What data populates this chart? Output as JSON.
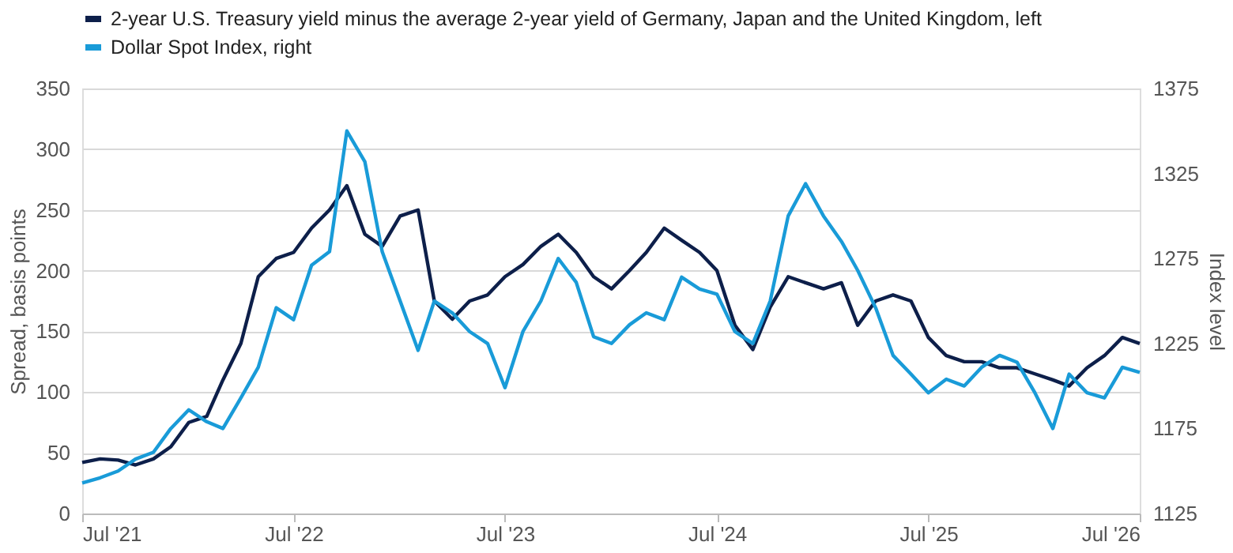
{
  "chart_data": {
    "type": "line",
    "ylabel": "Spread, basis points",
    "y2label": "Index level",
    "x": [
      "2021-07-01",
      "2021-08-01",
      "2021-09-01",
      "2021-10-01",
      "2021-11-01",
      "2021-12-01",
      "2022-01-01",
      "2022-02-01",
      "2022-03-01",
      "2022-04-01",
      "2022-05-01",
      "2022-06-01",
      "2022-07-01",
      "2022-08-01",
      "2022-09-01",
      "2022-10-01",
      "2022-11-01",
      "2022-12-01",
      "2023-01-01",
      "2023-02-01",
      "2023-03-01",
      "2023-04-01",
      "2023-05-01",
      "2023-06-01",
      "2023-07-01",
      "2023-08-01",
      "2023-09-01",
      "2023-10-01",
      "2023-11-01",
      "2023-12-01",
      "2024-01-01",
      "2024-02-01",
      "2024-03-01",
      "2024-04-01",
      "2024-05-01",
      "2024-06-01",
      "2024-07-01",
      "2024-08-01",
      "2024-09-01",
      "2024-10-01",
      "2024-11-01",
      "2024-12-01",
      "2025-01-01",
      "2025-02-01",
      "2025-03-01",
      "2025-04-01",
      "2025-05-01",
      "2025-06-01",
      "2025-07-01",
      "2025-08-01",
      "2025-09-01",
      "2025-10-01",
      "2025-11-01",
      "2025-12-01",
      "2026-01-01",
      "2026-02-01",
      "2026-03-01",
      "2026-04-01",
      "2026-05-01",
      "2026-06-01",
      "2026-07-01"
    ],
    "series": [
      {
        "name": "2-year U.S. Treasury yield minus the average 2-year yield of Germany, Japan and the United Kingdom, left",
        "color": "#0d1f4a",
        "axis": "y",
        "values": [
          42,
          45,
          44,
          40,
          45,
          55,
          75,
          80,
          110,
          140,
          195,
          210,
          215,
          235,
          250,
          270,
          230,
          220,
          245,
          250,
          175,
          160,
          175,
          180,
          195,
          205,
          220,
          230,
          215,
          195,
          185,
          200,
          215,
          235,
          225,
          215,
          200,
          155,
          135,
          170,
          195,
          190,
          185,
          190,
          155,
          175,
          180,
          175,
          145,
          130,
          125,
          125,
          120,
          120,
          115,
          110,
          105,
          120,
          130,
          145,
          140
        ]
      },
      {
        "name": "Dollar Spot Index, right",
        "color": "#199bd8",
        "axis": "y2",
        "values": [
          1143,
          1146,
          1150,
          1157,
          1161,
          1175,
          1186,
          1179,
          1175,
          1193,
          1211,
          1246,
          1239,
          1271,
          1279,
          1350,
          1332,
          1279,
          1250,
          1221,
          1250,
          1243,
          1232,
          1225,
          1199,
          1232,
          1250,
          1275,
          1261,
          1229,
          1225,
          1236,
          1243,
          1239,
          1264,
          1257,
          1254,
          1232,
          1225,
          1250,
          1300,
          1319,
          1300,
          1285,
          1268,
          1246,
          1218,
          1207,
          1196,
          1204,
          1200,
          1211,
          1218,
          1214,
          1196,
          1175,
          1207,
          1196,
          1193,
          1211,
          1208
        ]
      }
    ],
    "xlim": [
      "2021-07-01",
      "2026-07-01"
    ],
    "xticks": [
      {
        "value": "2021-07-01",
        "label": "Jul '21"
      },
      {
        "value": "2022-07-01",
        "label": "Jul '22"
      },
      {
        "value": "2023-07-01",
        "label": "Jul '23"
      },
      {
        "value": "2024-07-01",
        "label": "Jul '24"
      },
      {
        "value": "2025-07-01",
        "label": "Jul '25"
      },
      {
        "value": "2026-07-01",
        "label": "Jul '26"
      }
    ],
    "ylim": [
      0,
      350
    ],
    "yticks": [
      0,
      50,
      100,
      150,
      200,
      250,
      300,
      350
    ],
    "y2lim": [
      1125,
      1375
    ],
    "y2ticks": [
      1125,
      1175,
      1225,
      1275,
      1325,
      1375
    ],
    "grid": "y",
    "legend": "top left",
    "line_style": "solid"
  }
}
